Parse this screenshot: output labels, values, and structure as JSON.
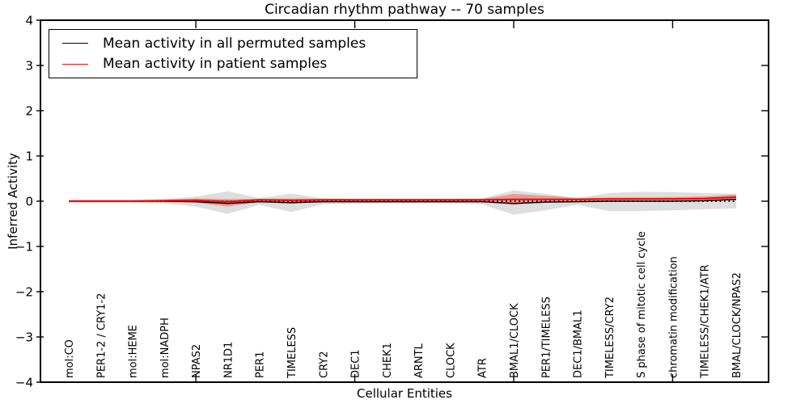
{
  "figure": {
    "title": "Circadian rhythm pathway -- 70 samples",
    "xlabel": "Cellular Entities",
    "ylabel": "Inferred Activity"
  },
  "legend": {
    "items": [
      {
        "label": "Mean activity in all permuted samples",
        "color": "#000000"
      },
      {
        "label": "Mean activity in patient samples",
        "color": "#ff0000"
      }
    ]
  },
  "chart_data": {
    "type": "line",
    "title": "Circadian rhythm pathway -- 70 samples",
    "xlabel": "Cellular Entities",
    "ylabel": "Inferred Activity",
    "ylim": [
      -4,
      4
    ],
    "yticks": [
      -4,
      -3,
      -2,
      -1,
      0,
      1,
      2,
      3,
      4
    ],
    "x_major_tick_indices": [
      4,
      9,
      14,
      19
    ],
    "grid": false,
    "legend_position": "upper-left",
    "categories": [
      "mol:CO",
      "PER1-2 / CRY1-2",
      "mol:HEME",
      "mol:NADPH",
      "NPAS2",
      "NR1D1",
      "PER1",
      "TIMELESS",
      "CRY2",
      "DEC1",
      "CHEK1",
      "ARNTL",
      "CLOCK",
      "ATR",
      "BMAL1/CLOCK",
      "PER1/TIMELESS",
      "DEC1/BMAL1",
      "TIMELESS/CRY2",
      "S phase of mitotic cell cycle",
      "chromatin modification",
      "TIMELESS/CHEK1/ATR",
      "BMAL/CLOCK/NPAS2"
    ],
    "series": [
      {
        "name": "Mean activity in all permuted samples",
        "color": "#000000",
        "style": "solid",
        "width": 1.5,
        "values": [
          0,
          0,
          0,
          0,
          -0.01,
          -0.05,
          -0.01,
          -0.03,
          -0.01,
          -0.01,
          -0.01,
          -0.01,
          -0.01,
          -0.01,
          -0.05,
          -0.02,
          -0.01,
          0,
          0,
          0,
          0.01,
          0.04
        ]
      },
      {
        "name": "Mean activity in patient samples",
        "color": "#ff0000",
        "style": "solid",
        "width": 2,
        "values": [
          0,
          0,
          0,
          0.01,
          0.02,
          -0.01,
          0.03,
          0.02,
          0.03,
          0.03,
          0.03,
          0.03,
          0.03,
          0.03,
          0.04,
          0.04,
          0.04,
          0.05,
          0.05,
          0.05,
          0.06,
          0.09
        ]
      }
    ],
    "bands": [
      {
        "name": "permuted samples range",
        "color": "#000000",
        "opacity": 0.13,
        "upper": [
          0.04,
          0.04,
          0.04,
          0.05,
          0.1,
          0.22,
          0.07,
          0.17,
          0.06,
          0.05,
          0.05,
          0.05,
          0.05,
          0.06,
          0.24,
          0.16,
          0.07,
          0.18,
          0.21,
          0.2,
          0.18,
          0.16
        ],
        "lower": [
          -0.04,
          -0.04,
          -0.04,
          -0.05,
          -0.12,
          -0.28,
          -0.08,
          -0.24,
          -0.07,
          -0.06,
          -0.05,
          -0.05,
          -0.05,
          -0.07,
          -0.3,
          -0.2,
          -0.08,
          -0.22,
          -0.22,
          -0.2,
          -0.18,
          -0.16
        ]
      },
      {
        "name": "patient samples range",
        "color": "#ff0000",
        "opacity": 0.3,
        "upper": [
          0.02,
          0.02,
          0.02,
          0.03,
          0.06,
          0.05,
          0.05,
          0.06,
          0.05,
          0.05,
          0.05,
          0.05,
          0.05,
          0.05,
          0.16,
          0.12,
          0.07,
          0.08,
          0.08,
          0.09,
          0.1,
          0.15
        ],
        "lower": [
          -0.02,
          -0.02,
          -0.02,
          -0.02,
          -0.03,
          -0.12,
          -0.02,
          -0.06,
          -0.01,
          -0.01,
          -0.01,
          0,
          0,
          -0.01,
          -0.08,
          -0.02,
          0.01,
          0.01,
          0.02,
          0.02,
          0.02,
          0.03
        ]
      }
    ],
    "reference_line": {
      "y": 0,
      "color": "#000000",
      "style": "dotted"
    }
  }
}
